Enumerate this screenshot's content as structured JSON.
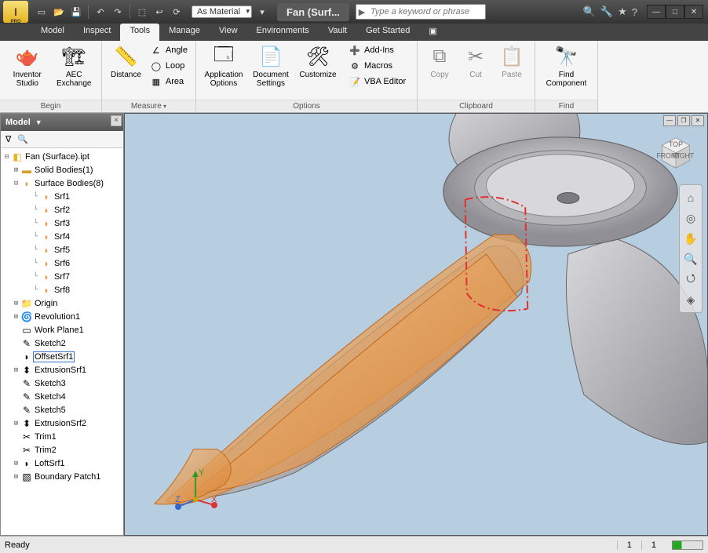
{
  "titlebar": {
    "material": "As Material",
    "doc_title": "Fan (Surf...",
    "search_placeholder": "Type a keyword or phrase"
  },
  "tabs": {
    "items": [
      "Model",
      "Inspect",
      "Tools",
      "Manage",
      "View",
      "Environments",
      "Vault",
      "Get Started"
    ],
    "active": 2
  },
  "ribbon": {
    "begin": {
      "label": "Begin",
      "inventor_studio": "Inventor Studio",
      "aec": "AEC Exchange"
    },
    "measure": {
      "label": "Measure",
      "distance": "Distance",
      "angle": "Angle",
      "loop": "Loop",
      "area": "Area"
    },
    "options": {
      "label": "Options",
      "app_options": "Application Options",
      "doc_settings": "Document Settings",
      "customize": "Customize",
      "addins": "Add-Ins",
      "macros": "Macros",
      "vba": "VBA Editor"
    },
    "clipboard": {
      "label": "Clipboard",
      "copy": "Copy",
      "cut": "Cut",
      "paste": "Paste"
    },
    "find": {
      "label": "Find",
      "find_component": "Find Component"
    }
  },
  "browser": {
    "title": "Model",
    "root": "Fan (Surface).ipt",
    "solid": "Solid Bodies(1)",
    "surface": "Surface Bodies(8)",
    "srfs": [
      "Srf1",
      "Srf2",
      "Srf3",
      "Srf4",
      "Srf5",
      "Srf6",
      "Srf7",
      "Srf8"
    ],
    "origin": "Origin",
    "features": [
      "Revolution1",
      "Work Plane1",
      "Sketch2",
      "OffsetSrf1",
      "ExtrusionSrf1",
      "Sketch3",
      "Sketch4",
      "Sketch5",
      "ExtrusionSrf2",
      "Trim1",
      "Trim2",
      "LoftSrf1",
      "Boundary Patch1"
    ],
    "selected": "OffsetSrf1"
  },
  "status": {
    "ready": "Ready",
    "n1": "1",
    "n2": "1"
  },
  "colors": {
    "viewport_bg": "#b7cde0",
    "blade_gray": "#b8b8bc",
    "surface_orange": "#e89a4a",
    "highlight_red": "#e03030"
  }
}
